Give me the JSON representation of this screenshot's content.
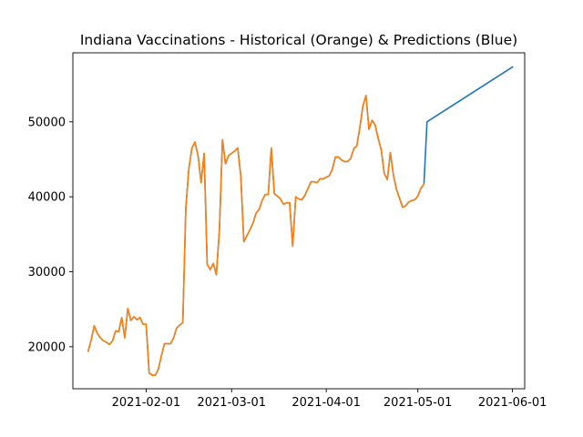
{
  "chart_data": {
    "type": "line",
    "title": "Indiana Vaccinations - Historical (Orange) & Predictions (Blue)",
    "xlabel": "",
    "ylabel": "",
    "x_axis_type": "date",
    "xlim": [
      "2021-01-08",
      "2021-06-05"
    ],
    "ylim": [
      14400,
      59200
    ],
    "x_ticks": [
      "2021-02-01",
      "2021-03-01",
      "2021-04-01",
      "2021-05-01",
      "2021-06-01"
    ],
    "y_ticks": [
      20000,
      30000,
      40000,
      50000
    ],
    "grid": false,
    "legend": "none",
    "series": [
      {
        "color": "#1f77b4",
        "points": [
          [
            "2021-01-13",
            19400
          ],
          [
            "2021-01-14",
            20900
          ],
          [
            "2021-01-15",
            22800
          ],
          [
            "2021-01-16",
            21800
          ],
          [
            "2021-01-17",
            21200
          ],
          [
            "2021-01-18",
            20800
          ],
          [
            "2021-01-19",
            20600
          ],
          [
            "2021-01-20",
            20300
          ],
          [
            "2021-01-21",
            20800
          ],
          [
            "2021-01-22",
            22100
          ],
          [
            "2021-01-23",
            22000
          ],
          [
            "2021-01-24",
            23900
          ],
          [
            "2021-01-25",
            21200
          ],
          [
            "2021-01-26",
            25100
          ],
          [
            "2021-01-27",
            23500
          ],
          [
            "2021-01-28",
            24000
          ],
          [
            "2021-01-29",
            23600
          ],
          [
            "2021-01-30",
            23900
          ],
          [
            "2021-01-31",
            23000
          ],
          [
            "2021-02-01",
            23000
          ],
          [
            "2021-02-02",
            16500
          ],
          [
            "2021-02-03",
            16200
          ],
          [
            "2021-02-04",
            16200
          ],
          [
            "2021-02-05",
            17000
          ],
          [
            "2021-02-06",
            18800
          ],
          [
            "2021-02-07",
            20400
          ],
          [
            "2021-02-08",
            20400
          ],
          [
            "2021-02-09",
            20400
          ],
          [
            "2021-02-10",
            21200
          ],
          [
            "2021-02-11",
            22500
          ],
          [
            "2021-02-12",
            22900
          ],
          [
            "2021-02-13",
            23200
          ],
          [
            "2021-02-14",
            38500
          ],
          [
            "2021-02-15",
            43800
          ],
          [
            "2021-02-16",
            46500
          ],
          [
            "2021-02-17",
            47300
          ],
          [
            "2021-02-18",
            45500
          ],
          [
            "2021-02-19",
            41900
          ],
          [
            "2021-02-20",
            45800
          ],
          [
            "2021-02-21",
            31000
          ],
          [
            "2021-02-22",
            30300
          ],
          [
            "2021-02-23",
            31100
          ],
          [
            "2021-02-24",
            29600
          ],
          [
            "2021-02-25",
            35500
          ],
          [
            "2021-02-26",
            47600
          ],
          [
            "2021-02-27",
            44400
          ],
          [
            "2021-02-28",
            45500
          ],
          [
            "2021-03-01",
            45800
          ],
          [
            "2021-03-02",
            46100
          ],
          [
            "2021-03-03",
            46500
          ],
          [
            "2021-03-04",
            42800
          ],
          [
            "2021-03-05",
            34000
          ],
          [
            "2021-03-06",
            34800
          ],
          [
            "2021-03-07",
            35600
          ],
          [
            "2021-03-08",
            36500
          ],
          [
            "2021-03-09",
            37800
          ],
          [
            "2021-03-10",
            38300
          ],
          [
            "2021-03-11",
            39500
          ],
          [
            "2021-03-12",
            40300
          ],
          [
            "2021-03-13",
            40300
          ],
          [
            "2021-03-14",
            46500
          ],
          [
            "2021-03-15",
            40400
          ],
          [
            "2021-03-16",
            40100
          ],
          [
            "2021-03-17",
            39700
          ],
          [
            "2021-03-18",
            39000
          ],
          [
            "2021-03-19",
            39200
          ],
          [
            "2021-03-20",
            39200
          ],
          [
            "2021-03-21",
            33400
          ],
          [
            "2021-03-22",
            40000
          ],
          [
            "2021-03-23",
            39700
          ],
          [
            "2021-03-24",
            39600
          ],
          [
            "2021-03-25",
            40200
          ],
          [
            "2021-03-26",
            41100
          ],
          [
            "2021-03-27",
            42000
          ],
          [
            "2021-03-28",
            42000
          ],
          [
            "2021-03-29",
            41900
          ],
          [
            "2021-03-30",
            42400
          ],
          [
            "2021-03-31",
            42400
          ],
          [
            "2021-04-01",
            42600
          ],
          [
            "2021-04-02",
            42800
          ],
          [
            "2021-04-03",
            43700
          ],
          [
            "2021-04-04",
            45300
          ],
          [
            "2021-04-05",
            45300
          ],
          [
            "2021-04-06",
            44900
          ],
          [
            "2021-04-07",
            44700
          ],
          [
            "2021-04-08",
            44700
          ],
          [
            "2021-04-09",
            45100
          ],
          [
            "2021-04-10",
            46400
          ],
          [
            "2021-04-11",
            46800
          ],
          [
            "2021-04-12",
            49200
          ],
          [
            "2021-04-13",
            52100
          ],
          [
            "2021-04-14",
            53500
          ],
          [
            "2021-04-15",
            49000
          ],
          [
            "2021-04-16",
            50200
          ],
          [
            "2021-04-17",
            49600
          ],
          [
            "2021-04-18",
            47800
          ],
          [
            "2021-04-19",
            46300
          ],
          [
            "2021-04-20",
            43100
          ],
          [
            "2021-04-21",
            42300
          ],
          [
            "2021-04-22",
            45900
          ],
          [
            "2021-04-23",
            42900
          ],
          [
            "2021-04-24",
            41000
          ],
          [
            "2021-04-25",
            39800
          ],
          [
            "2021-04-26",
            38600
          ],
          [
            "2021-04-27",
            38800
          ],
          [
            "2021-04-28",
            39300
          ],
          [
            "2021-04-29",
            39500
          ],
          [
            "2021-04-30",
            39600
          ],
          [
            "2021-05-01",
            40100
          ],
          [
            "2021-05-02",
            41100
          ],
          [
            "2021-05-03",
            41700
          ],
          [
            "2021-05-04",
            50000
          ],
          [
            "2021-06-01",
            57300
          ]
        ]
      },
      {
        "color": "#ff7f0e",
        "points": [
          [
            "2021-01-13",
            19400
          ],
          [
            "2021-01-14",
            20900
          ],
          [
            "2021-01-15",
            22800
          ],
          [
            "2021-01-16",
            21800
          ],
          [
            "2021-01-17",
            21200
          ],
          [
            "2021-01-18",
            20800
          ],
          [
            "2021-01-19",
            20600
          ],
          [
            "2021-01-20",
            20300
          ],
          [
            "2021-01-21",
            20800
          ],
          [
            "2021-01-22",
            22100
          ],
          [
            "2021-01-23",
            22000
          ],
          [
            "2021-01-24",
            23900
          ],
          [
            "2021-01-25",
            21200
          ],
          [
            "2021-01-26",
            25100
          ],
          [
            "2021-01-27",
            23500
          ],
          [
            "2021-01-28",
            24000
          ],
          [
            "2021-01-29",
            23600
          ],
          [
            "2021-01-30",
            23900
          ],
          [
            "2021-01-31",
            23000
          ],
          [
            "2021-02-01",
            23000
          ],
          [
            "2021-02-02",
            16500
          ],
          [
            "2021-02-03",
            16200
          ],
          [
            "2021-02-04",
            16200
          ],
          [
            "2021-02-05",
            17000
          ],
          [
            "2021-02-06",
            18800
          ],
          [
            "2021-02-07",
            20400
          ],
          [
            "2021-02-08",
            20400
          ],
          [
            "2021-02-09",
            20400
          ],
          [
            "2021-02-10",
            21200
          ],
          [
            "2021-02-11",
            22500
          ],
          [
            "2021-02-12",
            22900
          ],
          [
            "2021-02-13",
            23200
          ],
          [
            "2021-02-14",
            38500
          ],
          [
            "2021-02-15",
            43800
          ],
          [
            "2021-02-16",
            46500
          ],
          [
            "2021-02-17",
            47300
          ],
          [
            "2021-02-18",
            45500
          ],
          [
            "2021-02-19",
            41900
          ],
          [
            "2021-02-20",
            45800
          ],
          [
            "2021-02-21",
            31000
          ],
          [
            "2021-02-22",
            30300
          ],
          [
            "2021-02-23",
            31100
          ],
          [
            "2021-02-24",
            29600
          ],
          [
            "2021-02-25",
            35500
          ],
          [
            "2021-02-26",
            47600
          ],
          [
            "2021-02-27",
            44400
          ],
          [
            "2021-02-28",
            45500
          ],
          [
            "2021-03-01",
            45800
          ],
          [
            "2021-03-02",
            46100
          ],
          [
            "2021-03-03",
            46500
          ],
          [
            "2021-03-04",
            42800
          ],
          [
            "2021-03-05",
            34000
          ],
          [
            "2021-03-06",
            34800
          ],
          [
            "2021-03-07",
            35600
          ],
          [
            "2021-03-08",
            36500
          ],
          [
            "2021-03-09",
            37800
          ],
          [
            "2021-03-10",
            38300
          ],
          [
            "2021-03-11",
            39500
          ],
          [
            "2021-03-12",
            40300
          ],
          [
            "2021-03-13",
            40300
          ],
          [
            "2021-03-14",
            46500
          ],
          [
            "2021-03-15",
            40400
          ],
          [
            "2021-03-16",
            40100
          ],
          [
            "2021-03-17",
            39700
          ],
          [
            "2021-03-18",
            39000
          ],
          [
            "2021-03-19",
            39200
          ],
          [
            "2021-03-20",
            39200
          ],
          [
            "2021-03-21",
            33400
          ],
          [
            "2021-03-22",
            40000
          ],
          [
            "2021-03-23",
            39700
          ],
          [
            "2021-03-24",
            39600
          ],
          [
            "2021-03-25",
            40200
          ],
          [
            "2021-03-26",
            41100
          ],
          [
            "2021-03-27",
            42000
          ],
          [
            "2021-03-28",
            42000
          ],
          [
            "2021-03-29",
            41900
          ],
          [
            "2021-03-30",
            42400
          ],
          [
            "2021-03-31",
            42400
          ],
          [
            "2021-04-01",
            42600
          ],
          [
            "2021-04-02",
            42800
          ],
          [
            "2021-04-03",
            43700
          ],
          [
            "2021-04-04",
            45300
          ],
          [
            "2021-04-05",
            45300
          ],
          [
            "2021-04-06",
            44900
          ],
          [
            "2021-04-07",
            44700
          ],
          [
            "2021-04-08",
            44700
          ],
          [
            "2021-04-09",
            45100
          ],
          [
            "2021-04-10",
            46400
          ],
          [
            "2021-04-11",
            46800
          ],
          [
            "2021-04-12",
            49200
          ],
          [
            "2021-04-13",
            52100
          ],
          [
            "2021-04-14",
            53500
          ],
          [
            "2021-04-15",
            49000
          ],
          [
            "2021-04-16",
            50200
          ],
          [
            "2021-04-17",
            49600
          ],
          [
            "2021-04-18",
            47800
          ],
          [
            "2021-04-19",
            46300
          ],
          [
            "2021-04-20",
            43100
          ],
          [
            "2021-04-21",
            42300
          ],
          [
            "2021-04-22",
            45900
          ],
          [
            "2021-04-23",
            42900
          ],
          [
            "2021-04-24",
            41000
          ],
          [
            "2021-04-25",
            39800
          ],
          [
            "2021-04-26",
            38600
          ],
          [
            "2021-04-27",
            38800
          ],
          [
            "2021-04-28",
            39300
          ],
          [
            "2021-04-29",
            39500
          ],
          [
            "2021-04-30",
            39600
          ],
          [
            "2021-05-01",
            40100
          ],
          [
            "2021-05-02",
            41100
          ],
          [
            "2021-05-03",
            41700
          ]
        ]
      }
    ]
  }
}
